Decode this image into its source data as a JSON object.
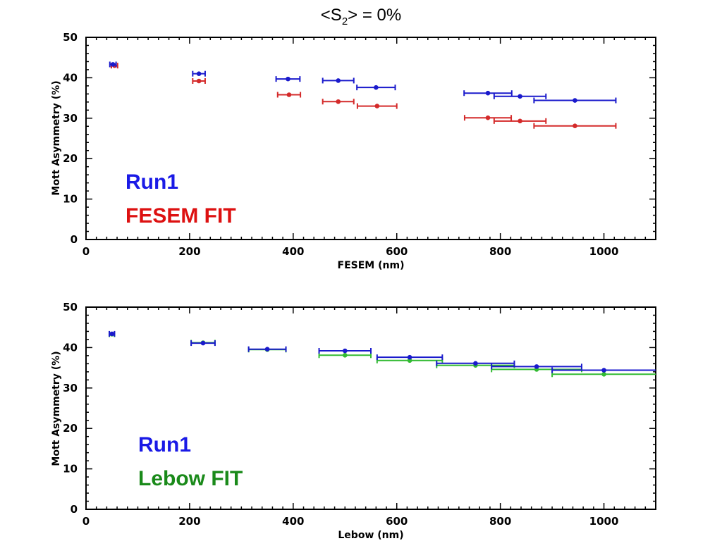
{
  "title": {
    "prefix": "<S",
    "subscript": "2",
    "suffix": "> = 0%"
  },
  "colors": {
    "run1": "#1a1acc",
    "fesem_fit": "#d42a2a",
    "lebow_fit": "#33bb33",
    "legend_run1": "#1a1ae6",
    "legend_fesem": "#dd1111",
    "legend_lebow": "#1a8a1a"
  },
  "chart_data": [
    {
      "type": "scatter",
      "xlabel": "FESEM (nm)",
      "ylabel": "Mott Asymmetry (%)",
      "xlim": [
        0,
        1100
      ],
      "ylim": [
        0,
        50
      ],
      "xticks": [
        0,
        200,
        400,
        600,
        800,
        1000
      ],
      "yticks": [
        0,
        10,
        20,
        30,
        40,
        50
      ],
      "legend": [
        "Run1",
        "FESEM FIT"
      ],
      "legend_placement": "bottom-left",
      "grid": false,
      "series": [
        {
          "name": "Run1",
          "color": "#1a1acc",
          "points": [
            {
              "x": 52,
              "y": 43.3,
              "xerr": 6
            },
            {
              "x": 218,
              "y": 41.0,
              "xerr": 12
            },
            {
              "x": 390,
              "y": 39.7,
              "xerr": 23
            },
            {
              "x": 487,
              "y": 39.3,
              "xerr": 30
            },
            {
              "x": 560,
              "y": 37.6,
              "xerr": 37
            },
            {
              "x": 776,
              "y": 36.2,
              "xerr": 46
            },
            {
              "x": 838,
              "y": 35.4,
              "xerr": 50
            },
            {
              "x": 944,
              "y": 34.4,
              "xerr": 79
            }
          ]
        },
        {
          "name": "FESEM FIT",
          "color": "#d42a2a",
          "points": [
            {
              "x": 55,
              "y": 43.0,
              "xerr": 6
            },
            {
              "x": 218,
              "y": 39.2,
              "xerr": 12
            },
            {
              "x": 392,
              "y": 35.8,
              "xerr": 22
            },
            {
              "x": 487,
              "y": 34.1,
              "xerr": 30
            },
            {
              "x": 562,
              "y": 33.0,
              "xerr": 38
            },
            {
              "x": 776,
              "y": 30.1,
              "xerr": 45
            },
            {
              "x": 838,
              "y": 29.3,
              "xerr": 50
            },
            {
              "x": 944,
              "y": 28.1,
              "xerr": 79
            }
          ]
        }
      ]
    },
    {
      "type": "scatter",
      "xlabel": "Lebow (nm)",
      "ylabel": "Mott Asymmetry (%)",
      "xlim": [
        0,
        1100
      ],
      "ylim": [
        0,
        50
      ],
      "xticks": [
        0,
        200,
        400,
        600,
        800,
        1000
      ],
      "yticks": [
        0,
        10,
        20,
        30,
        40,
        50
      ],
      "legend": [
        "Run1",
        "Lebow FIT"
      ],
      "legend_placement": "bottom-left",
      "grid": false,
      "series": [
        {
          "name": "Run1",
          "color": "#1a1acc",
          "points": [
            {
              "x": 50,
              "y": 43.4,
              "xerr": 5
            },
            {
              "x": 226,
              "y": 41.1,
              "xerr": 23
            },
            {
              "x": 350,
              "y": 39.6,
              "xerr": 36
            },
            {
              "x": 500,
              "y": 39.2,
              "xerr": 50
            },
            {
              "x": 625,
              "y": 37.6,
              "xerr": 63
            },
            {
              "x": 752,
              "y": 36.1,
              "xerr": 75
            },
            {
              "x": 870,
              "y": 35.3,
              "xerr": 87
            },
            {
              "x": 1000,
              "y": 34.4,
              "xerr": 100
            }
          ]
        },
        {
          "name": "Lebow FIT",
          "color": "#33bb33",
          "points": [
            {
              "x": 50,
              "y": 43.3,
              "xerr": 5
            },
            {
              "x": 226,
              "y": 41.2,
              "xerr": 23
            },
            {
              "x": 350,
              "y": 39.5,
              "xerr": 36
            },
            {
              "x": 500,
              "y": 38.1,
              "xerr": 50
            },
            {
              "x": 625,
              "y": 36.8,
              "xerr": 63
            },
            {
              "x": 752,
              "y": 35.6,
              "xerr": 75
            },
            {
              "x": 870,
              "y": 34.6,
              "xerr": 87
            },
            {
              "x": 1000,
              "y": 33.4,
              "xerr": 100
            }
          ]
        }
      ]
    }
  ]
}
